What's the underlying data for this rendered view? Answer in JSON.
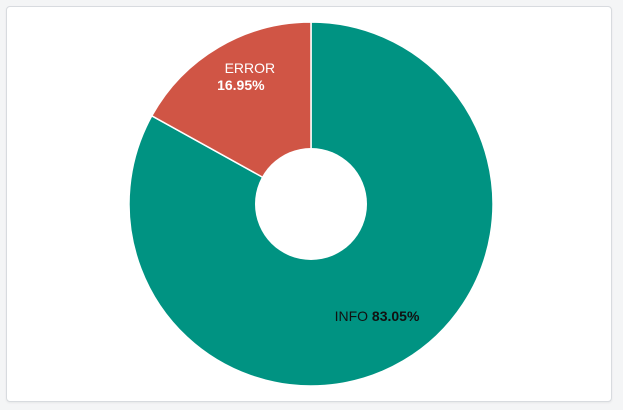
{
  "chart_data": {
    "type": "pie",
    "donut": true,
    "slices": [
      {
        "label": "INFO",
        "percent": "83.05%",
        "value": 83.05,
        "color": "#009382",
        "label_color": "#111111"
      },
      {
        "label": "ERROR",
        "percent": "16.95%",
        "value": 16.95,
        "color": "#d05545",
        "label_color": "#ffffff"
      }
    ]
  }
}
